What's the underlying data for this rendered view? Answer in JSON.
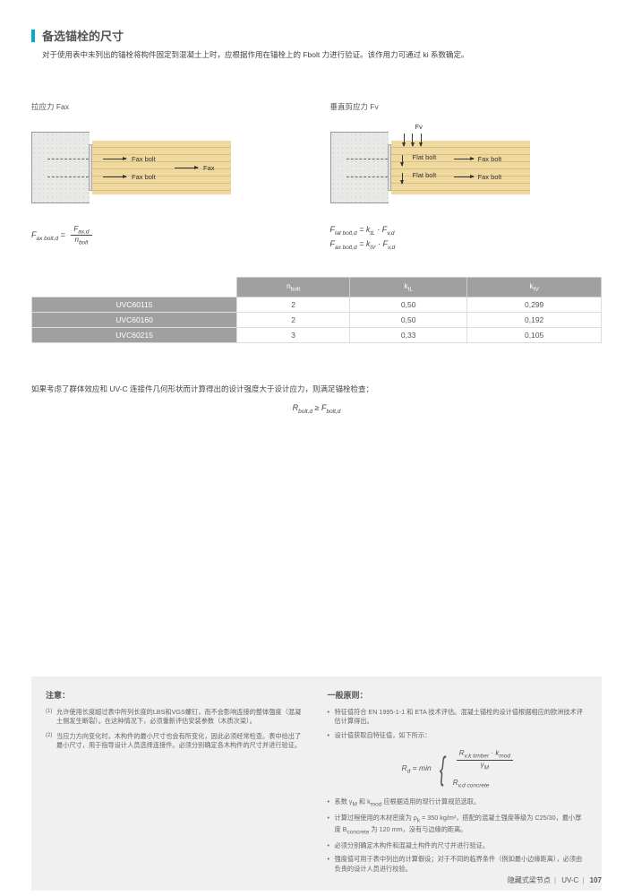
{
  "title": "备选锚栓的尺寸",
  "intro": "对于使用表中未列出的锚栓将构件固定到混凝土上时，应根据作用在锚栓上的 Fbolt 力进行验证。该作用力可通过 ki 系数确定。",
  "diagrams": {
    "left": {
      "heading": "拉应力 Fax",
      "labels": {
        "fax_bolt": "Fax bolt",
        "fax": "Fax"
      },
      "formula_lhs": "F<sub>ax bolt,d</sub> =",
      "formula_num": "F<sub>ax,d</sub>",
      "formula_den": "n<sub>bolt</sub>"
    },
    "right": {
      "heading": "垂直剪应力 Fv",
      "labels": {
        "fv": "Fv",
        "flat_bolt": "Flat bolt",
        "fax_bolt": "Fax bolt"
      },
      "formula1": "F<sub>lat bolt,d</sub> = k<sub>tL</sub> · F<sub>v,d</sub>",
      "formula2": "F<sub>ax bolt,d</sub> = k<sub>tV</sub> · F<sub>v,d</sub>"
    }
  },
  "table": {
    "headers": [
      "",
      "n<sub>bolt</sub>",
      "k<sub>tL</sub>",
      "k<sub>tV</sub>"
    ],
    "rows": [
      [
        "UVC60115",
        "2",
        "0,50",
        "0,299"
      ],
      [
        "UVC60160",
        "2",
        "0,50",
        "0,192"
      ],
      [
        "UVC60215",
        "3",
        "0,33",
        "0,105"
      ]
    ]
  },
  "verify": {
    "text": "如果考虑了群体效应和 UV-C 连接件几何形状而计算得出的设计强度大于设计应力，则满足锚栓检查：",
    "formula": "R<sub>bolt,d</sub> ≥ F<sub>bolt,d</sub>"
  },
  "notes": {
    "left_title": "注意：",
    "items": [
      "允许使用长度超过表中所列长度的LBS和VGS螺钉，而不会影响连接的整体强度（混凝土侧发生断裂）。在这种情况下，必须重新评估安装参数（木质次梁）。",
      "当应力方向变化时，木构件的最小尺寸也会有所变化，因此必须经常检查。表中给出了最小尺寸，用于指导设计人员选择连接件。必须分别确定各木构件的尺寸并进行验证。"
    ],
    "right_title": "一般原则：",
    "bullets_top": [
      "特征值符合 EN 1995-1-1 和 ETA 技术评估。混凝土锚栓的设计值根据相应的欧洲技术评估计算得出。",
      "设计值获取自特征值，如下所示："
    ],
    "rd_lhs": "R<sub>d</sub> = min",
    "rd_opt1_num": "R<sub>v,k timber</sub> · k<sub>mod</sub>",
    "rd_opt1_den": "γ<sub>M</sub>",
    "rd_opt2": "R<sub>v,d concrete</sub>",
    "bullets_bottom": [
      "系数 γ<sub>M</sub> 和 k<sub>mod</sub> 应根据适用的现行计算规范选取。",
      "计算过程使用的木材密度为  ρ<sub>k</sub> = 350 kg/m³，搭配的混凝土强度等级为 C25/30，最小厚度 B<sub>concrete</sub> 为 120 mm，没有与边缘的距离。",
      "必须分别确定木构件和混凝土构件的尺寸并进行验证。",
      "强度值可用于表中列出的计算假设；对于不同的临界条件（例如最小边缘距离），必须由负责的设计人员进行校验。"
    ]
  },
  "footer": {
    "text1": "隐藏式梁节点",
    "text2": "UV-C",
    "page": "107"
  }
}
